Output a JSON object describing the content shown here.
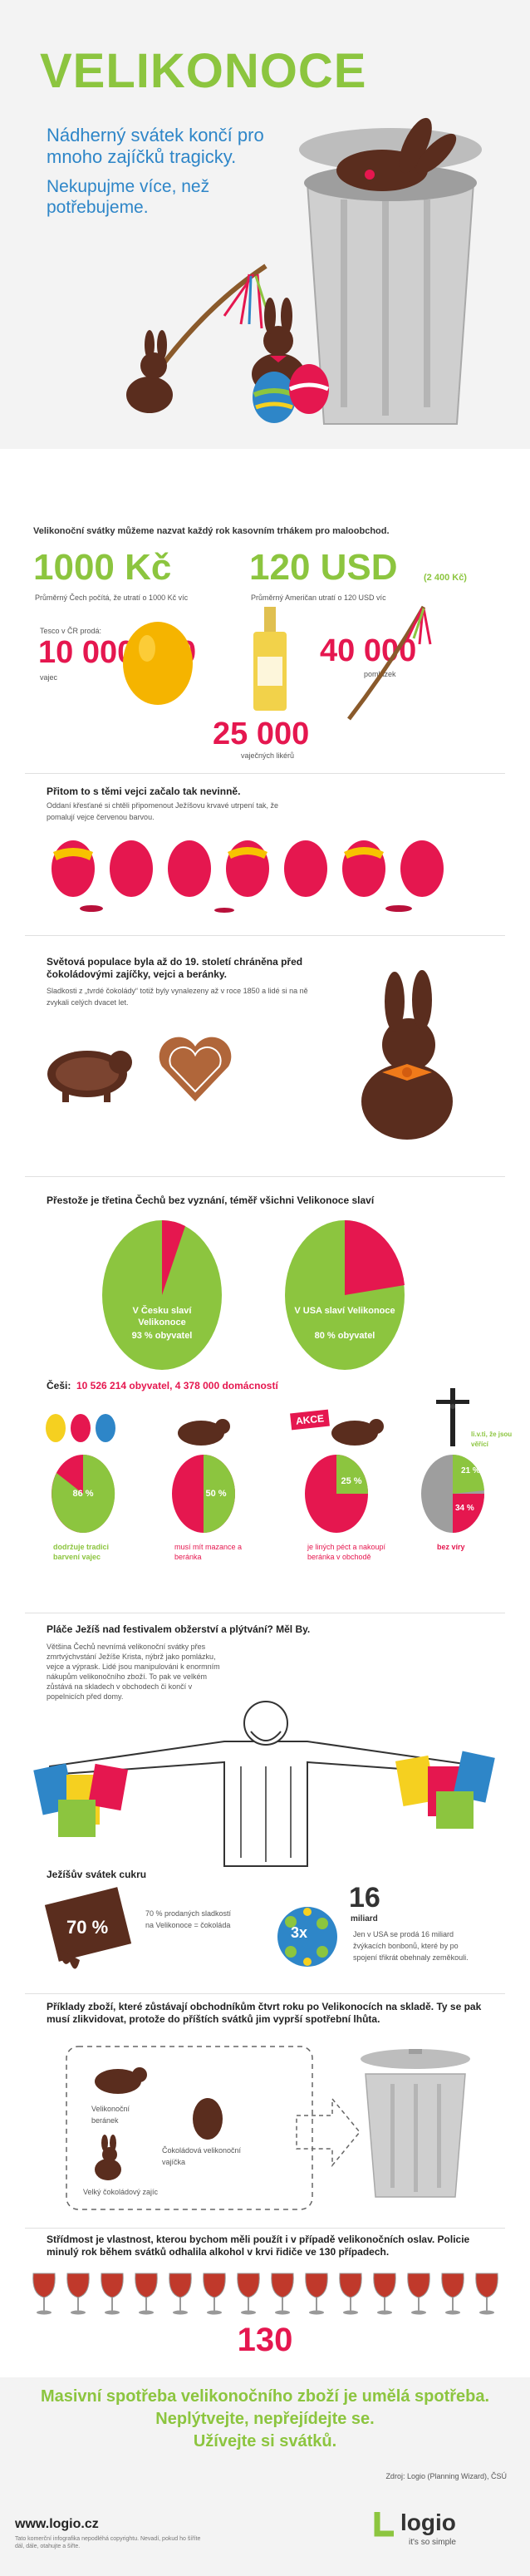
{
  "hero": {
    "title": "VELIKONOCE",
    "subtitle": "Nádherný svátek končí pro mnoho zajíčků tragicky.",
    "subtitle2": "Nekupujme více, než potřebujeme."
  },
  "spending": {
    "intro": "Velikonoční svátky můžeme nazvat každý rok kasovním trhákem pro maloobchod.",
    "cz_amount": "1000 Kč",
    "cz_desc": "Průměrný Čech počítá, že utratí o 1000 Kč víc",
    "us_amount": "120 USD",
    "us_sub": "(2 400 Kč)",
    "us_desc": "Průměrný Američan utratí o 120 USD víc",
    "tesco_label": "Tesco v ČR prodá:",
    "eggs_value": "10 000 000",
    "eggs_unit": "vajec",
    "liquor_value": "25 000",
    "liquor_unit": "vaječných likérů",
    "whips_value": "40 000",
    "whips_unit": "pomlázek"
  },
  "history": {
    "heading": "Přitom to s těmi vejci začalo tak nevinně.",
    "text": "Oddaní křesťané si chtěli připomenout Ježíšovu krvavé utrpení tak, že pomalují vejce červenou barvou."
  },
  "chocolate": {
    "heading": "Světová populace byla až do 19. století chráněna před čokoládovými zajíčky, vejci a beránky.",
    "text": "Sladkosti z „tvrdé čokolády“ totiž byly vynalezeny až v roce 1850 a lidé si na ně zvykali celých dvacet let."
  },
  "religion": {
    "heading": "Přestože je třetina Čechů bez vyznání, téměř všichni Velikonoce slaví",
    "cz_label": "V Česku slaví Velikonoce",
    "cz_value": "93 % obyvatel",
    "us_label": "V USA slaví Velikonoce",
    "us_value": "80 % obyvatel"
  },
  "czechs": {
    "label": "Češi:",
    "stats": "10 526 214 obyvatel, 4 378 000 domácností",
    "akce": "AKCE",
    "p1": "86 %",
    "p1_caption": "dodržuje tradici barvení vajec",
    "p2": "50 %",
    "p2_caption": "musí mít mazance a beránka",
    "p3": "25 %",
    "p3_caption": "je liných péct a nakoupí beránka v obchodě",
    "p4_a": "21 %",
    "p4_a_caption": "li.v.ti, že jsou věřící",
    "p4_b": "34 %",
    "p4_b_caption": "bez víry"
  },
  "jesus": {
    "heading": "Pláče Ježíš nad festivalem obžerství a plýtvání? Měl By.",
    "text": "Většina Čechů nevnímá velikonoční svátky přes zmrtvýchvstání Ježíše Krista, nýbrž jako pomlázku, vejce a výprask. Lidé jsou manipulováni k enormním nákupům velikonočního zboží. To pak ve velkém zůstává na skladech v obchodech či končí v popelnicích před domy."
  },
  "sugar": {
    "heading": "Ježíšův svátek cukru",
    "choc_value": "70 %",
    "choc_text": "70 % prodaných sladkostí na Velikonoce = čokoláda",
    "x_value": "3x",
    "billion_value": "16",
    "billion_unit": "miliard",
    "billion_text": "Jen v USA se prodá 16 miliard žvýkacích bonbonů, které by po spojení třikrát obehnaly zeměkouli."
  },
  "waste": {
    "heading": "Příklady zboží, které zůstávají obchodníkům čtvrt roku po Velikonocích na skladě. Ty se pak musí zlikvidovat, protože do příštích svátků jim vyprší spotřební lhůta.",
    "lamb": "Velikonoční beránek",
    "egg": "Čokoládová velikonoční vajíčka",
    "bunny": "Velký čokoládový zajíc"
  },
  "alcohol": {
    "heading": "Střídmost je vlastnost, kterou bychom měli použít i v případě velikonočních oslav. Policie minulý rok během svátků odhalila alkohol v krvi řidiče ve 130 případech.",
    "value": "130"
  },
  "footer": {
    "msg1": "Masivní spotřeba velikonočního zboží je umělá spotřeba.",
    "msg2": "Neplýtvejte, nepřejídejte se.",
    "msg3": "Užívejte si svátků.",
    "source": "Zdroj: Logio (Planning Wizard), ČSÚ",
    "url": "www.logio.cz",
    "disclaimer": "Tato komerční infografika nepodléhá copyrightu. Nevadí, pokud ho šíříte dál, dále, otahujte a šiřte.",
    "logo": "logio",
    "slogan": "it's so simple"
  },
  "colors": {
    "green": "#8cc53f",
    "blue": "#2e86c8",
    "pink": "#e5174f",
    "chocolate": "#5a2d1e"
  }
}
